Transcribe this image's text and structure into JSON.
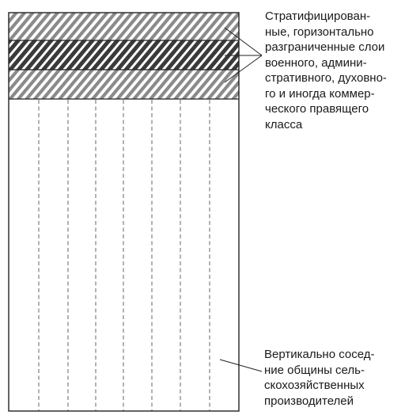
{
  "figure": {
    "ruling_classes_caption": {
      "lines": [
        "Стратифицирован-",
        "ные, горизонтально",
        "разграниченные слои",
        "военного, админи-",
        "стративного, духовно-",
        "го и иногда коммер-",
        "ческого правящего",
        "класса"
      ]
    },
    "communities_caption": {
      "lines": [
        "Вертикально сосед-",
        "ние общины сель-",
        "скохозяйственных",
        "производителей"
      ]
    }
  },
  "colors": {
    "outline": "#222222",
    "hatch_light_background": "#ffffff",
    "hatch_light_stripe": "#8a8a8a",
    "hatch_dark_background": "#ffffff",
    "hatch_dark_stripe": "#3a3a3a",
    "dashed_line": "#555555",
    "text": "#1a1a1a"
  },
  "icons": {
    "upper_band": "diagonal-hatch-light",
    "middle_band": "diagonal-hatch-dark",
    "lower_band": "diagonal-hatch-light"
  }
}
